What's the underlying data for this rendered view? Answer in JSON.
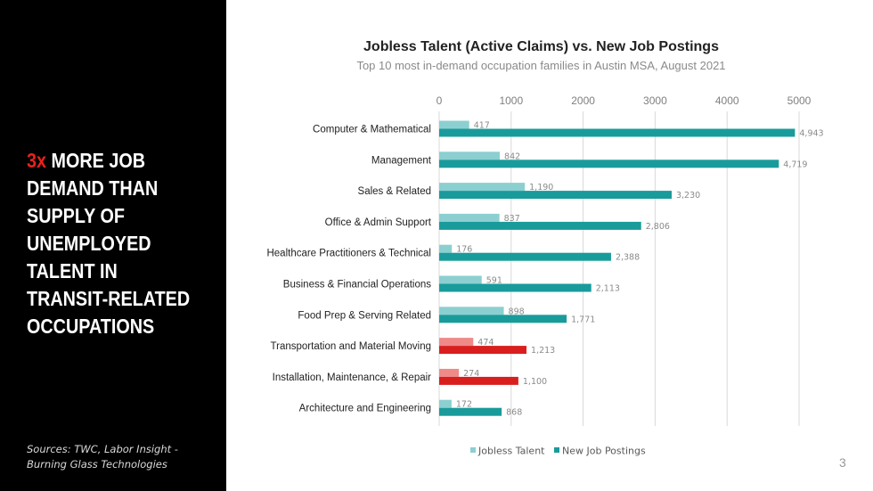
{
  "sidebar": {
    "headline_accent": "3x",
    "headline_rest": " MORE JOB DEMAND THAN SUPPLY OF UNEMPLOYED TALENT IN TRANSIT-RELATED OCCUPATIONS",
    "sources": "Sources: TWC, Labor Insight - Burning Glass Technologies"
  },
  "page_number": "3",
  "colors": {
    "jobless": "#8ccfd1",
    "postings": "#1a9b9b",
    "jobless_highlight": "#ef8a89",
    "postings_highlight": "#d91e1e",
    "grid": "#d9d9d9",
    "accent": "#e8211d"
  },
  "chart_data": {
    "type": "bar",
    "orientation": "horizontal",
    "title": "Jobless Talent (Active Claims) vs. New Job Postings",
    "subtitle": "Top 10 most in-demand occupation families in Austin MSA, August 2021",
    "categories": [
      "Computer & Mathematical",
      "Management",
      "Sales & Related",
      "Office & Admin Support",
      "Healthcare Practitioners & Technical",
      "Business & Financial Operations",
      "Food Prep & Serving Related",
      "Transportation and Material Moving",
      "Installation, Maintenance, & Repair",
      "Architecture and Engineering"
    ],
    "highlighted_categories": [
      "Transportation and Material Moving",
      "Installation, Maintenance, & Repair"
    ],
    "series": [
      {
        "name": "Jobless Talent",
        "values": [
          417,
          842,
          1190,
          837,
          176,
          591,
          898,
          474,
          274,
          172
        ],
        "labels": [
          "417",
          "842",
          "1,190",
          "837",
          "176",
          "591",
          "898",
          "474",
          "274",
          "172"
        ]
      },
      {
        "name": "New Job Postings",
        "values": [
          4943,
          4719,
          3230,
          2806,
          2388,
          2113,
          1771,
          1213,
          1100,
          868
        ],
        "labels": [
          "4,943",
          "4,719",
          "3,230",
          "2,806",
          "2,388",
          "2,113",
          "1,771",
          "1,213",
          "1,100",
          "868"
        ]
      }
    ],
    "xlim": [
      0,
      5000
    ],
    "xticks": [
      0,
      1000,
      2000,
      3000,
      4000,
      5000
    ],
    "xtick_labels": [
      "0",
      "1000",
      "2000",
      "3000",
      "4000",
      "5000"
    ],
    "grid": true,
    "axis_position": "top",
    "legend_position": "bottom"
  }
}
